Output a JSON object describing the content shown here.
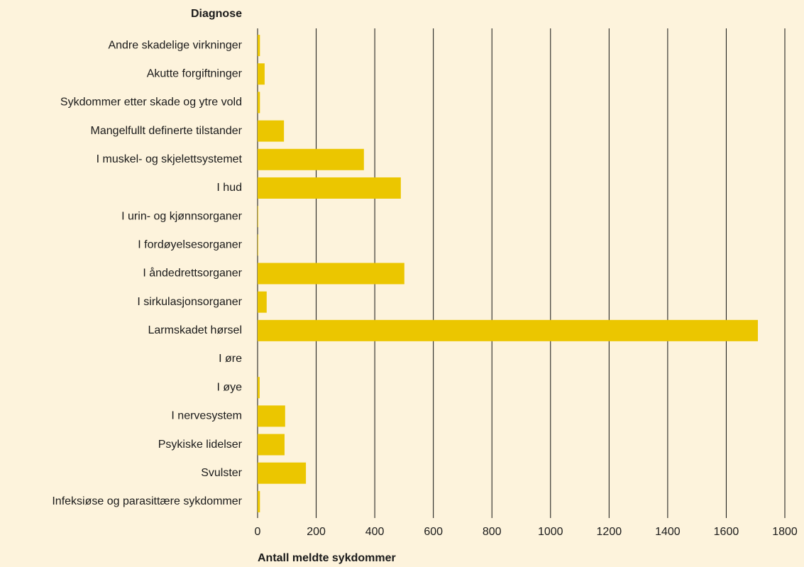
{
  "chart_data": {
    "type": "bar",
    "orientation": "horizontal",
    "y_label": "Diagnose",
    "x_label": "Antall meldte sykdommer",
    "categories": [
      "Andre skadelige virkninger",
      "Akutte forgiftninger",
      "Sykdommer etter skade og ytre vold",
      "Mangelfullt definerte tilstander",
      "I muskel- og skjelettsystemet",
      "I hud",
      "I urin- og kjønnsorganer",
      "I fordøyelsesorganer",
      "I åndedrettsorganer",
      "I sirkulasjonsorganer",
      "Larmskadet hørsel",
      "I øre",
      "I øye",
      "I nervesystem",
      "Psykiske lidelser",
      "Svulster",
      "Infeksiøse og parasittære sykdommer"
    ],
    "values": [
      8,
      24,
      8,
      90,
      363,
      489,
      2,
      2,
      501,
      31,
      1708,
      0,
      7,
      94,
      92,
      165,
      8
    ],
    "color": "#ebc600",
    "xlim": [
      0,
      1800
    ],
    "xticks": [
      0,
      200,
      400,
      600,
      800,
      1000,
      1200,
      1400,
      1600,
      1800
    ],
    "grid": true
  }
}
